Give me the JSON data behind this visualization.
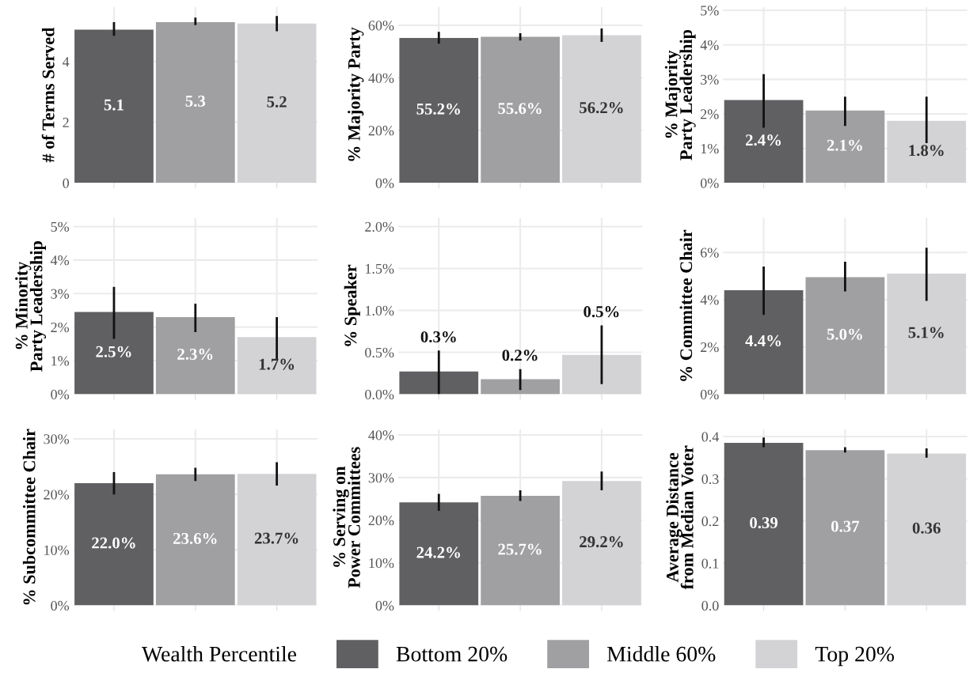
{
  "chart_data": [
    {
      "type": "bar",
      "ylabel": "# of Terms Served",
      "categories": [
        null
      ],
      "ylim": [
        0,
        5.8
      ],
      "yticks": [
        0,
        2,
        4
      ],
      "grid": true,
      "legend": "bottom",
      "legend_title": "Wealth Percentile",
      "series": [
        {
          "name": "Bottom 20%",
          "color": "#606062",
          "values": [
            5.05
          ],
          "errors": [
            [
              4.85,
              5.3
            ]
          ],
          "value_labels": [
            "5.1"
          ]
        },
        {
          "name": "Middle 60%",
          "color": "#a0a0a3",
          "values": [
            5.3
          ],
          "errors": [
            [
              5.2,
              5.45
            ]
          ],
          "value_labels": [
            "5.3"
          ]
        },
        {
          "name": "Top 20%",
          "color": "#d3d3d5",
          "values": [
            5.25
          ],
          "errors": [
            [
              5.0,
              5.5
            ]
          ],
          "value_labels": [
            "5.2"
          ]
        }
      ]
    },
    {
      "type": "bar",
      "ylabel": "% Majority Party",
      "categories": [
        null
      ],
      "ylim": [
        0,
        67
      ],
      "yticks": [
        {
          "value": 0,
          "label": "0%"
        },
        {
          "value": 20,
          "label": "20%"
        },
        {
          "value": 40,
          "label": "40%"
        },
        {
          "value": 60,
          "label": "60%"
        }
      ],
      "grid": true,
      "series": [
        {
          "color": "#606062",
          "values": [
            55.2
          ],
          "errors": [
            [
              53,
              57.5
            ]
          ],
          "value_labels": [
            "55.2%"
          ]
        },
        {
          "color": "#a0a0a3",
          "values": [
            55.6
          ],
          "errors": [
            [
              54.2,
              57
            ]
          ],
          "value_labels": [
            "55.6%"
          ]
        },
        {
          "color": "#d3d3d5",
          "values": [
            56.2
          ],
          "errors": [
            [
              53.7,
              58.8
            ]
          ],
          "value_labels": [
            "56.2%"
          ]
        }
      ]
    },
    {
      "type": "bar",
      "ylabel": "% Majority\nParty Leadership",
      "categories": [
        null
      ],
      "ylim": [
        0,
        5.1
      ],
      "yticks": [
        {
          "value": 0,
          "label": "0%"
        },
        {
          "value": 1,
          "label": "1%"
        },
        {
          "value": 2,
          "label": "2%"
        },
        {
          "value": 3,
          "label": "3%"
        },
        {
          "value": 4,
          "label": "4%"
        },
        {
          "value": 5,
          "label": "5%"
        }
      ],
      "grid": true,
      "series": [
        {
          "color": "#606062",
          "values": [
            2.4
          ],
          "errors": [
            [
              1.6,
              3.15
            ]
          ],
          "value_labels": [
            "2.4%"
          ]
        },
        {
          "color": "#a0a0a3",
          "values": [
            2.1
          ],
          "errors": [
            [
              1.65,
              2.5
            ]
          ],
          "value_labels": [
            "2.1%"
          ]
        },
        {
          "color": "#d3d3d5",
          "values": [
            1.8
          ],
          "errors": [
            [
              1.15,
              2.5
            ]
          ],
          "value_labels": [
            "1.8%"
          ]
        }
      ]
    },
    {
      "type": "bar",
      "ylabel": "% Minority\nParty Leadership",
      "categories": [
        null
      ],
      "ylim": [
        0,
        5.25
      ],
      "yticks": [
        {
          "value": 0,
          "label": "0%"
        },
        {
          "value": 1,
          "label": "1%"
        },
        {
          "value": 2,
          "label": "2%"
        },
        {
          "value": 3,
          "label": "3%"
        },
        {
          "value": 4,
          "label": "4%"
        },
        {
          "value": 5,
          "label": "5%"
        }
      ],
      "grid": true,
      "series": [
        {
          "color": "#606062",
          "values": [
            2.45
          ],
          "errors": [
            [
              1.65,
              3.2
            ]
          ],
          "value_labels": [
            "2.5%"
          ]
        },
        {
          "color": "#a0a0a3",
          "values": [
            2.3
          ],
          "errors": [
            [
              1.85,
              2.7
            ]
          ],
          "value_labels": [
            "2.3%"
          ]
        },
        {
          "color": "#d3d3d5",
          "values": [
            1.7
          ],
          "errors": [
            [
              1.05,
              2.3
            ]
          ],
          "value_labels": [
            "1.7%"
          ]
        }
      ]
    },
    {
      "type": "bar",
      "ylabel": "% Speaker",
      "categories": [
        null
      ],
      "ylim": [
        0,
        2.1
      ],
      "yticks": [
        {
          "value": 0,
          "label": "0.0%"
        },
        {
          "value": 0.5,
          "label": "0.5%"
        },
        {
          "value": 1.0,
          "label": "1.0%"
        },
        {
          "value": 1.5,
          "label": "1.5%"
        },
        {
          "value": 2.0,
          "label": "2.0%"
        }
      ],
      "grid": true,
      "series": [
        {
          "color": "#606062",
          "values": [
            0.27
          ],
          "errors": [
            [
              0.0,
              0.52
            ]
          ],
          "value_labels": [
            "0.3%"
          ]
        },
        {
          "color": "#a0a0a3",
          "values": [
            0.18
          ],
          "errors": [
            [
              0.05,
              0.3
            ]
          ],
          "value_labels": [
            "0.2%"
          ]
        },
        {
          "color": "#d3d3d5",
          "values": [
            0.47
          ],
          "errors": [
            [
              0.12,
              0.82
            ]
          ],
          "value_labels": [
            "0.5%"
          ]
        }
      ]
    },
    {
      "type": "bar",
      "ylabel": "% Committee Chair",
      "categories": [
        null
      ],
      "ylim": [
        0,
        7.45
      ],
      "yticks": [
        {
          "value": 0,
          "label": "0%"
        },
        {
          "value": 2,
          "label": "2%"
        },
        {
          "value": 4,
          "label": "4%"
        },
        {
          "value": 6,
          "label": "6%"
        }
      ],
      "grid": true,
      "series": [
        {
          "color": "#606062",
          "values": [
            4.4
          ],
          "errors": [
            [
              3.35,
              5.4
            ]
          ],
          "value_labels": [
            "4.4%"
          ]
        },
        {
          "color": "#a0a0a3",
          "values": [
            4.95
          ],
          "errors": [
            [
              4.35,
              5.6
            ]
          ],
          "value_labels": [
            "5.0%"
          ]
        },
        {
          "color": "#d3d3d5",
          "values": [
            5.1
          ],
          "errors": [
            [
              3.95,
              6.2
            ]
          ],
          "value_labels": [
            "5.1%"
          ]
        }
      ]
    },
    {
      "type": "bar",
      "ylabel": "% Subcommittee Chair",
      "categories": [
        null
      ],
      "ylim": [
        0,
        31.7
      ],
      "yticks": [
        {
          "value": 0,
          "label": "0%"
        },
        {
          "value": 10,
          "label": "10%"
        },
        {
          "value": 20,
          "label": "20%"
        },
        {
          "value": 30,
          "label": "30%"
        }
      ],
      "grid": true,
      "series": [
        {
          "color": "#606062",
          "values": [
            22.0
          ],
          "errors": [
            [
              20,
              24
            ]
          ],
          "value_labels": [
            "22.0%"
          ]
        },
        {
          "color": "#a0a0a3",
          "values": [
            23.6
          ],
          "errors": [
            [
              22.4,
              24.8
            ]
          ],
          "value_labels": [
            "23.6%"
          ]
        },
        {
          "color": "#d3d3d5",
          "values": [
            23.7
          ],
          "errors": [
            [
              21.6,
              25.8
            ]
          ],
          "value_labels": [
            "23.7%"
          ]
        }
      ]
    },
    {
      "type": "bar",
      "ylabel": "% Serving on\nPower Committees",
      "categories": [
        null
      ],
      "ylim": [
        0,
        41.3
      ],
      "yticks": [
        {
          "value": 0,
          "label": "0%"
        },
        {
          "value": 10,
          "label": "10%"
        },
        {
          "value": 20,
          "label": "20%"
        },
        {
          "value": 30,
          "label": "30%"
        },
        {
          "value": 40,
          "label": "40%"
        }
      ],
      "grid": true,
      "series": [
        {
          "color": "#606062",
          "values": [
            24.2
          ],
          "errors": [
            [
              22.2,
              26.2
            ]
          ],
          "value_labels": [
            "24.2%"
          ]
        },
        {
          "color": "#a0a0a3",
          "values": [
            25.7
          ],
          "errors": [
            [
              24.5,
              27
            ]
          ],
          "value_labels": [
            "25.7%"
          ]
        },
        {
          "color": "#d3d3d5",
          "values": [
            29.2
          ],
          "errors": [
            [
              27,
              31.4
            ]
          ],
          "value_labels": [
            "29.2%"
          ]
        }
      ]
    },
    {
      "type": "bar",
      "ylabel": "Average Distance\nfrom Median Voter",
      "categories": [
        null
      ],
      "ylim": [
        0,
        0.417
      ],
      "yticks": [
        {
          "value": 0,
          "label": "0.0"
        },
        {
          "value": 0.1,
          "label": "0.1"
        },
        {
          "value": 0.2,
          "label": "0.2"
        },
        {
          "value": 0.3,
          "label": "0.3"
        },
        {
          "value": 0.4,
          "label": "0.4"
        }
      ],
      "grid": true,
      "series": [
        {
          "color": "#606062",
          "values": [
            0.385
          ],
          "errors": [
            [
              0.375,
              0.398
            ]
          ],
          "value_labels": [
            "0.39"
          ]
        },
        {
          "color": "#a0a0a3",
          "values": [
            0.368
          ],
          "errors": [
            [
              0.362,
              0.375
            ]
          ],
          "value_labels": [
            "0.37"
          ]
        },
        {
          "color": "#d3d3d5",
          "values": [
            0.36
          ],
          "errors": [
            [
              0.35,
              0.372
            ]
          ],
          "value_labels": [
            "0.36"
          ]
        }
      ]
    }
  ]
}
